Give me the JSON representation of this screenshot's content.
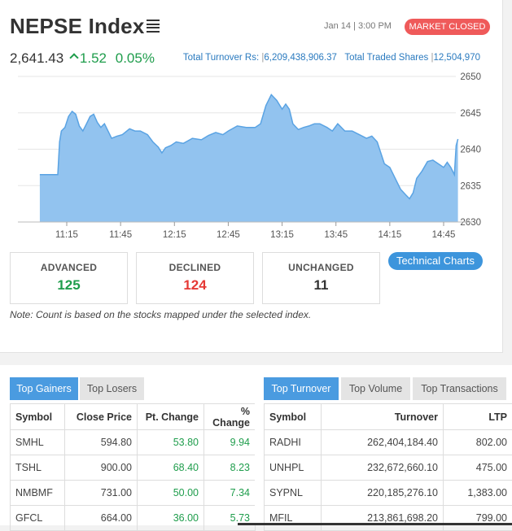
{
  "header": {
    "title": "NEPSE Index",
    "date": "Jan 14 | 3:00 PM",
    "status": "MARKET CLOSED",
    "index_value": "2,641.43",
    "change": "1.52",
    "change_pct": "0.05%",
    "turnover_label": "Total Turnover Rs:",
    "turnover_value": "6,209,438,906.37",
    "shares_label": "Total Traded Shares",
    "shares_value": "12,504,970"
  },
  "chart_data": {
    "type": "area",
    "x_ticks": [
      "11:15",
      "11:45",
      "12:15",
      "12:45",
      "13:15",
      "13:45",
      "14:15",
      "14:45"
    ],
    "y_ticks": [
      2650,
      2645,
      2640,
      2635,
      2630
    ],
    "ylim": [
      2630,
      2650
    ],
    "x_time_range": [
      "11:00",
      "15:00"
    ],
    "color": "#92c3ef",
    "line_color": "#5aa3e3",
    "points": [
      [
        "11:00",
        2636.5
      ],
      [
        "11:04",
        2636.5
      ],
      [
        "11:10",
        2636.5
      ],
      [
        "11:11",
        2641
      ],
      [
        "11:12",
        2642.5
      ],
      [
        "11:14",
        2643
      ],
      [
        "11:16",
        2644.5
      ],
      [
        "11:18",
        2645.2
      ],
      [
        "11:20",
        2644.8
      ],
      [
        "11:22",
        2643.2
      ],
      [
        "11:24",
        2642.5
      ],
      [
        "11:26",
        2643.5
      ],
      [
        "11:28",
        2644.5
      ],
      [
        "11:30",
        2644.8
      ],
      [
        "11:32",
        2643.7
      ],
      [
        "11:34",
        2643
      ],
      [
        "11:36",
        2643.5
      ],
      [
        "11:38",
        2642.5
      ],
      [
        "11:40",
        2641.5
      ],
      [
        "11:43",
        2641.8
      ],
      [
        "11:46",
        2642
      ],
      [
        "11:50",
        2642.8
      ],
      [
        "11:53",
        2642.5
      ],
      [
        "11:56",
        2642.5
      ],
      [
        "12:00",
        2642
      ],
      [
        "12:03",
        2641
      ],
      [
        "12:06",
        2640.3
      ],
      [
        "12:08",
        2639.5
      ],
      [
        "12:10",
        2640.2
      ],
      [
        "12:13",
        2640.5
      ],
      [
        "12:16",
        2641
      ],
      [
        "12:20",
        2640.8
      ],
      [
        "12:25",
        2641.5
      ],
      [
        "12:30",
        2641.3
      ],
      [
        "12:34",
        2641.9
      ],
      [
        "12:38",
        2642.3
      ],
      [
        "12:42",
        2642
      ],
      [
        "12:45",
        2642.5
      ],
      [
        "12:50",
        2643.2
      ],
      [
        "12:55",
        2643
      ],
      [
        "13:00",
        2643
      ],
      [
        "13:03",
        2643.5
      ],
      [
        "13:06",
        2646
      ],
      [
        "13:09",
        2647.5
      ],
      [
        "13:12",
        2646.7
      ],
      [
        "13:15",
        2645.5
      ],
      [
        "13:17",
        2646.2
      ],
      [
        "13:19",
        2645.5
      ],
      [
        "13:21",
        2643.5
      ],
      [
        "13:24",
        2642.7
      ],
      [
        "13:27",
        2643
      ],
      [
        "13:30",
        2643.2
      ],
      [
        "13:33",
        2643.5
      ],
      [
        "13:36",
        2643.5
      ],
      [
        "13:40",
        2643
      ],
      [
        "13:43",
        2642.5
      ],
      [
        "13:46",
        2643.5
      ],
      [
        "13:50",
        2642.5
      ],
      [
        "13:54",
        2642.5
      ],
      [
        "13:58",
        2642
      ],
      [
        "14:02",
        2641.5
      ],
      [
        "14:05",
        2641.8
      ],
      [
        "14:08",
        2641
      ],
      [
        "14:10",
        2639.5
      ],
      [
        "14:12",
        2638
      ],
      [
        "14:15",
        2637.5
      ],
      [
        "14:18",
        2636
      ],
      [
        "14:21",
        2634.5
      ],
      [
        "14:24",
        2633.7
      ],
      [
        "14:26",
        2633.2
      ],
      [
        "14:28",
        2634
      ],
      [
        "14:30",
        2636
      ],
      [
        "14:33",
        2637
      ],
      [
        "14:36",
        2638.3
      ],
      [
        "14:39",
        2638.5
      ],
      [
        "14:42",
        2638
      ],
      [
        "14:45",
        2637.5
      ],
      [
        "14:47",
        2638.2
      ],
      [
        "14:49",
        2637.5
      ],
      [
        "14:51",
        2636.5
      ],
      [
        "14:52",
        2640.5
      ],
      [
        "14:53",
        2641.4
      ]
    ]
  },
  "stats": {
    "advanced_label": "ADVANCED",
    "advanced_value": "125",
    "advanced_color": "#1f9d4c",
    "declined_label": "DECLINED",
    "declined_value": "124",
    "declined_color": "#e53935",
    "unchanged_label": "UNCHANGED",
    "unchanged_value": "11",
    "unchanged_color": "#333333"
  },
  "technical_charts_label": "Technical Charts",
  "note": "Note: Count is based on the stocks mapped under the selected index.",
  "left_panel": {
    "tabs": [
      "Top Gainers",
      "Top Losers"
    ],
    "active_tab": "Top Gainers",
    "columns": [
      "Symbol",
      "Close Price",
      "Pt. Change",
      "% Change"
    ],
    "rows": [
      [
        "SMHL",
        "594.80",
        "53.80",
        "9.94"
      ],
      [
        "TSHL",
        "900.00",
        "68.40",
        "8.23"
      ],
      [
        "NMBMF",
        "731.00",
        "50.00",
        "7.34"
      ],
      [
        "GFCL",
        "664.00",
        "36.00",
        "5.73"
      ]
    ]
  },
  "right_panel": {
    "tabs": [
      "Top Turnover",
      "Top Volume",
      "Top Transactions"
    ],
    "active_tab": "Top Turnover",
    "columns": [
      "Symbol",
      "Turnover",
      "LTP"
    ],
    "rows": [
      [
        "RADHI",
        "262,404,184.40",
        "802.00"
      ],
      [
        "UNHPL",
        "232,672,660.10",
        "475.00"
      ],
      [
        "SYPNL",
        "220,185,276.10",
        "1,383.00"
      ],
      [
        "MFIL",
        "213,861,698.20",
        "799.00"
      ]
    ]
  }
}
